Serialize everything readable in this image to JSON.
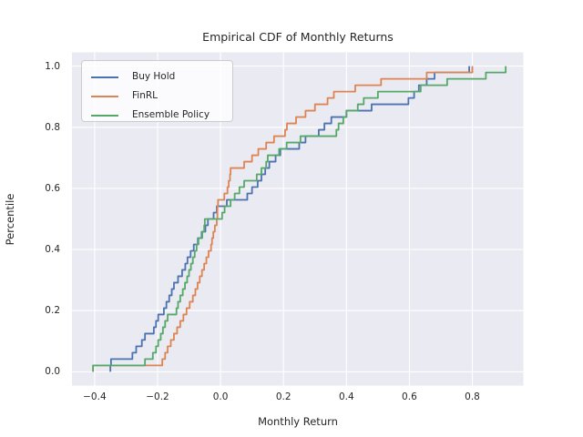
{
  "chart_data": {
    "type": "line",
    "subtype": "ecdf-step",
    "title": "Empirical CDF of Monthly Returns",
    "xlabel": "Monthly Return",
    "ylabel": "Percentile",
    "xlim": [
      -0.472,
      0.962
    ],
    "ylim": [
      -0.045,
      1.045
    ],
    "grid": true,
    "legend_position": "upper left",
    "n_points_per_series": 48,
    "x_ticks": [
      {
        "value": -0.4,
        "label": "−0.4"
      },
      {
        "value": -0.2,
        "label": "−0.2"
      },
      {
        "value": 0.0,
        "label": "0.0"
      },
      {
        "value": 0.2,
        "label": "0.2"
      },
      {
        "value": 0.4,
        "label": "0.4"
      },
      {
        "value": 0.6,
        "label": "0.6"
      },
      {
        "value": 0.8,
        "label": "0.8"
      }
    ],
    "y_ticks": [
      {
        "value": 0.0,
        "label": "0.0"
      },
      {
        "value": 0.2,
        "label": "0.2"
      },
      {
        "value": 0.4,
        "label": "0.4"
      },
      {
        "value": 0.6,
        "label": "0.6"
      },
      {
        "value": 0.8,
        "label": "0.8"
      },
      {
        "value": 1.0,
        "label": "1.0"
      }
    ],
    "series": [
      {
        "name": "Buy Hold",
        "color": "#4c72b0",
        "sorted_values": [
          -0.35,
          -0.348,
          -0.28,
          -0.268,
          -0.25,
          -0.24,
          -0.212,
          -0.205,
          -0.198,
          -0.18,
          -0.172,
          -0.163,
          -0.155,
          -0.148,
          -0.135,
          -0.122,
          -0.112,
          -0.105,
          -0.095,
          -0.085,
          -0.072,
          -0.06,
          -0.048,
          -0.04,
          -0.022,
          -0.012,
          0.02,
          0.085,
          0.1,
          0.118,
          0.13,
          0.142,
          0.155,
          0.175,
          0.19,
          0.25,
          0.27,
          0.312,
          0.33,
          0.352,
          0.4,
          0.48,
          0.597,
          0.615,
          0.63,
          0.655,
          0.68,
          0.79
        ]
      },
      {
        "name": "FinRL",
        "color": "#dd8452",
        "sorted_values": [
          -0.405,
          -0.185,
          -0.176,
          -0.168,
          -0.158,
          -0.148,
          -0.138,
          -0.128,
          -0.118,
          -0.108,
          -0.098,
          -0.088,
          -0.08,
          -0.073,
          -0.066,
          -0.059,
          -0.052,
          -0.045,
          -0.038,
          -0.03,
          -0.027,
          -0.023,
          -0.018,
          -0.012,
          -0.01,
          -0.01,
          -0.008,
          0.012,
          0.022,
          0.026,
          0.03,
          0.032,
          0.075,
          0.1,
          0.12,
          0.145,
          0.17,
          0.205,
          0.211,
          0.24,
          0.27,
          0.3,
          0.34,
          0.36,
          0.428,
          0.51,
          0.655,
          0.8
        ]
      },
      {
        "name": "Ensemble Policy",
        "color": "#55a868",
        "sorted_values": [
          -0.405,
          -0.24,
          -0.215,
          -0.205,
          -0.198,
          -0.19,
          -0.183,
          -0.176,
          -0.168,
          -0.14,
          -0.135,
          -0.128,
          -0.12,
          -0.113,
          -0.106,
          -0.1,
          -0.094,
          -0.088,
          -0.082,
          -0.076,
          -0.07,
          -0.058,
          -0.052,
          -0.05,
          0.005,
          0.013,
          0.032,
          0.045,
          0.06,
          0.075,
          0.115,
          0.13,
          0.145,
          0.15,
          0.186,
          0.21,
          0.254,
          0.368,
          0.375,
          0.39,
          0.4,
          0.436,
          0.455,
          0.5,
          0.636,
          0.72,
          0.843,
          0.906
        ]
      }
    ],
    "colors": {
      "figure_background": "#ffffff",
      "plot_background": "#eaeaf2",
      "grid": "#ffffff",
      "text": "#262626",
      "legend_background": "rgba(255,255,255,0.8)",
      "legend_border": "#cccccc"
    },
    "line_width": 1.8
  }
}
